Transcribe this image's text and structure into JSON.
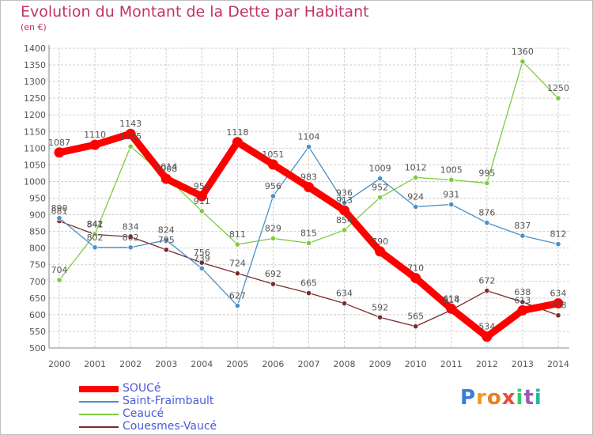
{
  "header": {
    "title": "Evolution du Montant de la Dette par Habitant",
    "unit": "(en €)"
  },
  "logo": {
    "text": "Proxiti"
  },
  "colors": {
    "title": "#c0336a",
    "grid": "#d0d0d0",
    "axis": "#888888",
    "label": "#555555",
    "legend_text": "#4a5ad8"
  },
  "chart_data": {
    "type": "line",
    "x": [
      "2000",
      "2001",
      "2002",
      "2003",
      "2004",
      "2005",
      "2006",
      "2007",
      "2008",
      "2009",
      "2010",
      "2011",
      "2012",
      "2013",
      "2014"
    ],
    "ylim": [
      500,
      1400
    ],
    "yticks": [
      500,
      550,
      600,
      650,
      700,
      750,
      800,
      850,
      900,
      950,
      1000,
      1050,
      1100,
      1150,
      1200,
      1250,
      1300,
      1350,
      1400
    ],
    "grid": true,
    "legend_position": "bottom-left",
    "series": [
      {
        "name": "SOUCé",
        "color": "#ff0000",
        "values": [
          1087,
          1110,
          1143,
          1008,
          956,
          1118,
          1051,
          983,
          913,
          790,
          710,
          618,
          534,
          613,
          634
        ],
        "labels": [
          "1087",
          "1110",
          "1143",
          "1008",
          "956",
          "1118",
          "1051",
          "983",
          "913",
          "790",
          "710",
          "618",
          "534",
          "613",
          "634"
        ]
      },
      {
        "name": "Saint-Fraimbault",
        "color": "#4a90c8",
        "values": [
          890,
          802,
          802,
          824,
          739,
          627,
          956,
          1104,
          936,
          1009,
          924,
          931,
          876,
          837,
          812
        ],
        "labels": [
          "890",
          "802",
          "802",
          "824",
          "739",
          "627",
          "956",
          "1104",
          "936",
          "1009",
          "924",
          "931",
          "876",
          "837",
          "812"
        ]
      },
      {
        "name": "Ceaucé",
        "color": "#7ccc3c",
        "values": [
          704,
          842,
          1105,
          1014,
          911,
          811,
          829,
          815,
          854,
          952,
          1012,
          1005,
          995,
          1360,
          1250
        ],
        "labels": [
          "704",
          "842",
          "1105",
          "1014",
          "911",
          "811",
          "829",
          "815",
          "854",
          "952",
          "1012",
          "1005",
          "995",
          "1360",
          "1250"
        ]
      },
      {
        "name": "Couesmes-Vaucé",
        "color": "#7a2a2a",
        "values": [
          881,
          841,
          834,
          795,
          756,
          724,
          692,
          665,
          634,
          592,
          565,
          614,
          672,
          638,
          598
        ],
        "labels": [
          "881",
          "841",
          "834",
          "795",
          "756",
          "724",
          "692",
          "665",
          "634",
          "592",
          "565",
          "614",
          "672",
          "638",
          "598"
        ]
      }
    ]
  }
}
